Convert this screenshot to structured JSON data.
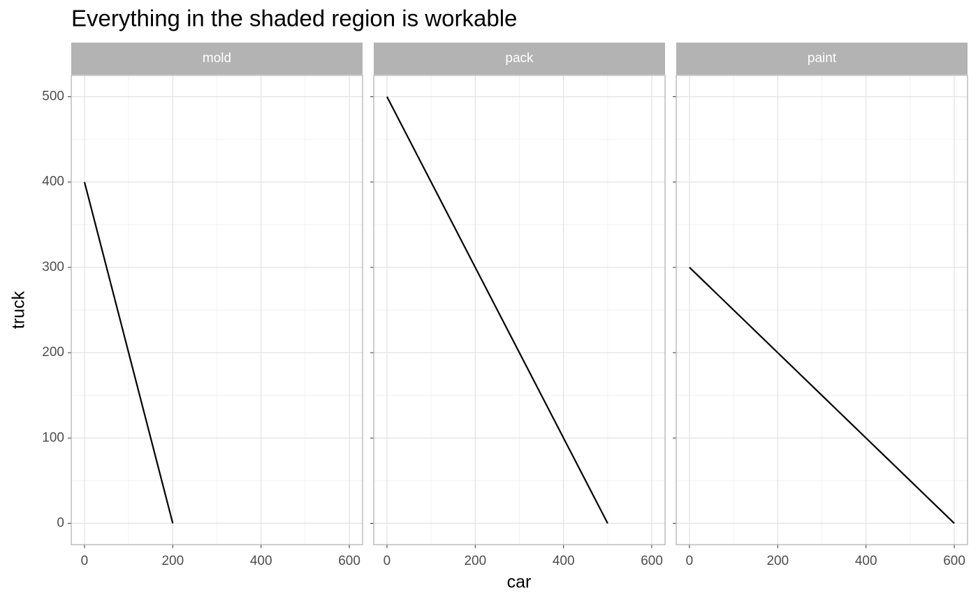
{
  "chart_data": {
    "type": "line",
    "title": "Everything in the shaded region is workable",
    "xlabel": "car",
    "ylabel": "truck",
    "xlim": [
      -30,
      630
    ],
    "ylim": [
      -25,
      525
    ],
    "xticks": [
      0,
      200,
      400,
      600
    ],
    "yticks": [
      0,
      100,
      200,
      300,
      400,
      500
    ],
    "x_minor_grid": [
      100,
      300,
      500
    ],
    "y_minor_grid": [
      50,
      150,
      250,
      350,
      450
    ],
    "grid": true,
    "color": "#000000",
    "facets": [
      {
        "name": "mold",
        "x": [
          0,
          200
        ],
        "values": [
          400,
          0
        ]
      },
      {
        "name": "pack",
        "x": [
          0,
          500
        ],
        "values": [
          500,
          0
        ]
      },
      {
        "name": "paint",
        "x": [
          0,
          600
        ],
        "values": [
          300,
          0
        ]
      }
    ]
  }
}
